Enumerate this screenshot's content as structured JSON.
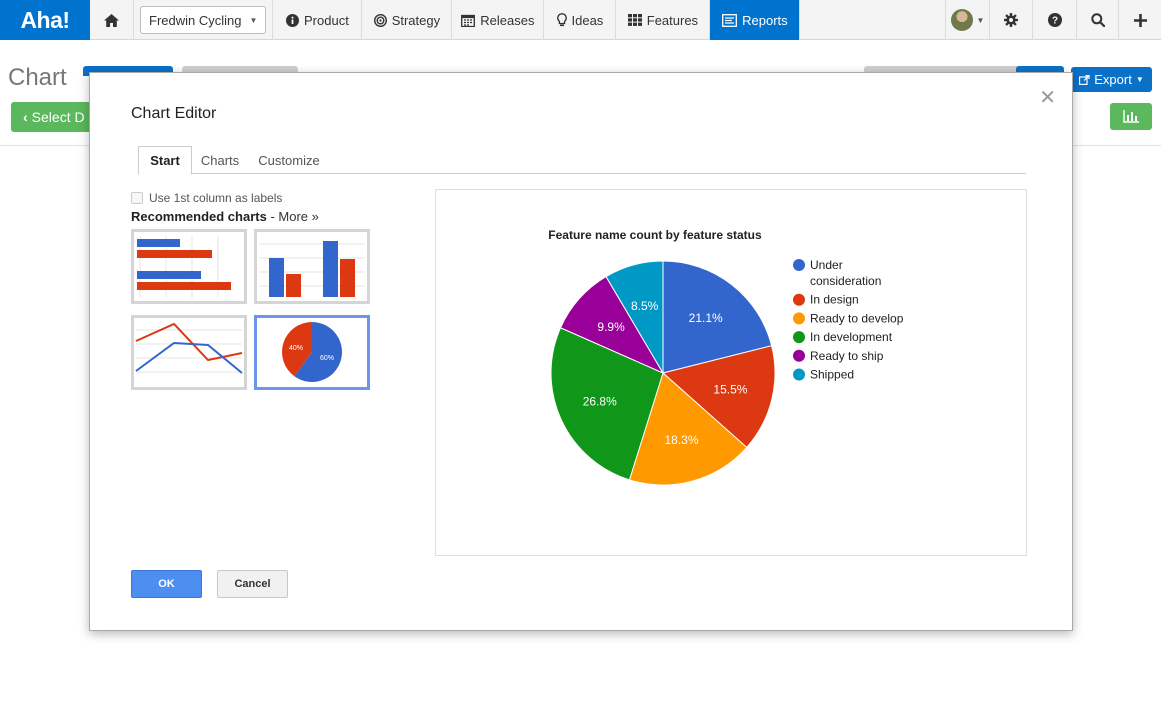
{
  "topnav": {
    "logo": "Aha!",
    "home_icon": "home-icon",
    "workspace": "Fredwin Cycling",
    "items": [
      {
        "label": "Product",
        "icon": "info-circle-icon"
      },
      {
        "label": "Strategy",
        "icon": "target-icon"
      },
      {
        "label": "Releases",
        "icon": "calendar-icon"
      },
      {
        "label": "Ideas",
        "icon": "lightbulb-icon"
      },
      {
        "label": "Features",
        "icon": "grid-icon"
      },
      {
        "label": "Reports",
        "icon": "report-icon",
        "active": true
      }
    ],
    "right_icons": [
      "avatar",
      "gear-icon",
      "help-icon",
      "search-icon",
      "plus-icon"
    ]
  },
  "page": {
    "title": "Chart",
    "select_data_label": "Select D",
    "export_label": "Export"
  },
  "modal": {
    "title": "Chart Editor",
    "tabs": [
      "Start",
      "Charts",
      "Customize"
    ],
    "active_tab": "Start",
    "checkbox_label": "Use 1st column as labels",
    "recommended_label": "Recommended charts",
    "more_label": "- More »",
    "thumb_pie_labels": [
      "40%",
      "60%"
    ],
    "ok_label": "OK",
    "cancel_label": "Cancel"
  },
  "colors": {
    "brand_blue": "#0073cf",
    "green": "#5cb85c",
    "ok_blue": "#4d8ff0"
  },
  "chart_data": {
    "type": "pie",
    "title": "Feature name count by feature status",
    "slices": [
      {
        "label": "Under consideration",
        "value": 21.1,
        "color": "#3366cc"
      },
      {
        "label": "In design",
        "value": 15.5,
        "color": "#dc3912"
      },
      {
        "label": "Ready to develop",
        "value": 18.3,
        "color": "#ff9900"
      },
      {
        "label": "In development",
        "value": 26.8,
        "color": "#109618"
      },
      {
        "label": "Ready to ship",
        "value": 9.9,
        "color": "#990099"
      },
      {
        "label": "Shipped",
        "value": 8.5,
        "color": "#0099c6"
      }
    ],
    "value_labels": [
      "21.1%",
      "15.5%",
      "18.3%",
      "26.8%",
      "9.9%",
      "8.5%"
    ],
    "legend_position": "right",
    "legend_lines": [
      [
        "Under",
        "consideration"
      ],
      [
        "In design"
      ],
      [
        "Ready to develop"
      ],
      [
        "In development"
      ],
      [
        "Ready to ship"
      ],
      [
        "Shipped"
      ]
    ]
  }
}
